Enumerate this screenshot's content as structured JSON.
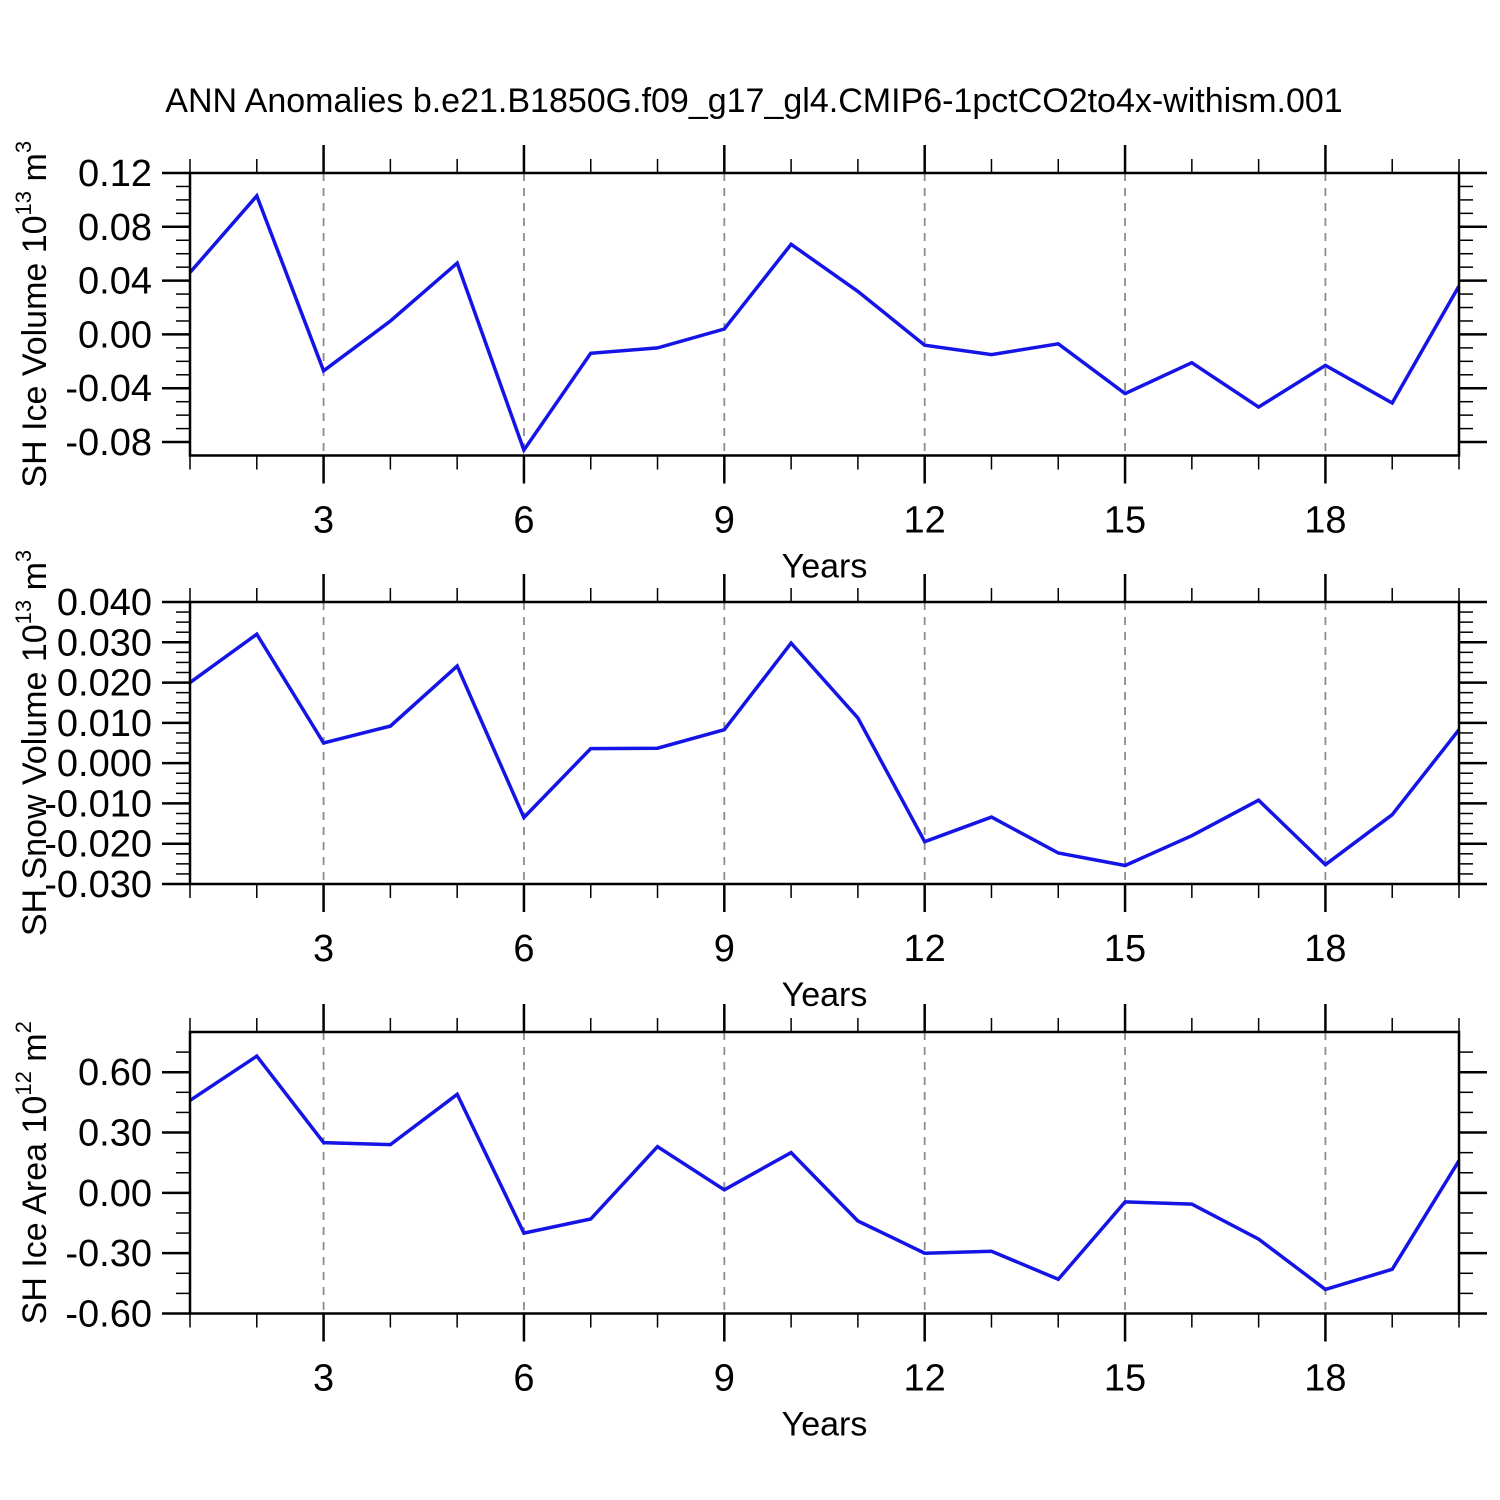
{
  "title": "ANN Anomalies b.e21.B1850G.f09_g17_gl4.CMIP6-1pctCO2to4x-withism.001",
  "colors": {
    "line": "#1414e6",
    "grid": "#8c8c8c",
    "axis": "#000000",
    "background": "#ffffff",
    "text": "#000000"
  },
  "x_axis": {
    "label": "Years",
    "range": [
      1,
      20
    ],
    "major_ticks": [
      3,
      6,
      9,
      12,
      15,
      18
    ],
    "major_tick_labels": [
      "3",
      "6",
      "9",
      "12",
      "15",
      "18"
    ],
    "minor_step": 1
  },
  "chart_data": [
    {
      "type": "line",
      "name": "sh-ice-volume",
      "ylabel": "SH Ice Volume 10^13 m^3",
      "ylabel_parts": [
        {
          "text": "SH Ice Volume 10"
        },
        {
          "sup": "13"
        },
        {
          "text": " m"
        },
        {
          "sup": "3"
        }
      ],
      "xlabel": "Years",
      "x": [
        1,
        2,
        3,
        4,
        5,
        6,
        7,
        8,
        9,
        10,
        11,
        12,
        13,
        14,
        15,
        16,
        17,
        18,
        19,
        20
      ],
      "values": [
        0.046,
        0.103,
        -0.027,
        0.01,
        0.053,
        -0.086,
        -0.014,
        -0.01,
        0.004,
        0.067,
        0.032,
        -0.008,
        -0.015,
        -0.007,
        -0.044,
        -0.021,
        -0.054,
        -0.023,
        -0.051,
        0.036
      ],
      "ylim": [
        -0.09,
        0.12
      ],
      "y_major_ticks": [
        {
          "value": 0.12,
          "label": "0.12"
        },
        {
          "value": 0.08,
          "label": "0.08"
        },
        {
          "value": 0.04,
          "label": "0.04"
        },
        {
          "value": 0.0,
          "label": "0.00"
        },
        {
          "value": -0.04,
          "label": "-0.04"
        },
        {
          "value": -0.08,
          "label": "-0.08"
        }
      ],
      "y_minor_step": 0.01
    },
    {
      "type": "line",
      "name": "sh-snow-volume",
      "ylabel": "SH Snow Volume 10^13 m^3",
      "ylabel_parts": [
        {
          "text": "SH Snow Volume 10"
        },
        {
          "sup": "13"
        },
        {
          "text": " m"
        },
        {
          "sup": "3"
        }
      ],
      "xlabel": "Years",
      "x": [
        1,
        2,
        3,
        4,
        5,
        6,
        7,
        8,
        9,
        10,
        11,
        12,
        13,
        14,
        15,
        16,
        17,
        18,
        19,
        20
      ],
      "values": [
        0.02,
        0.032,
        0.005,
        0.0092,
        0.0241,
        -0.0135,
        0.0036,
        0.0037,
        0.0083,
        0.0298,
        0.0112,
        -0.0195,
        -0.0134,
        -0.0223,
        -0.0254,
        -0.018,
        -0.0092,
        -0.0252,
        -0.0128,
        0.0083
      ],
      "ylim": [
        -0.03,
        0.04
      ],
      "y_major_ticks": [
        {
          "value": 0.04,
          "label": "0.040"
        },
        {
          "value": 0.03,
          "label": "0.030"
        },
        {
          "value": 0.02,
          "label": "0.020"
        },
        {
          "value": 0.01,
          "label": "0.010"
        },
        {
          "value": 0.0,
          "label": "0.000"
        },
        {
          "value": -0.01,
          "label": "-0.010"
        },
        {
          "value": -0.02,
          "label": "-0.020"
        },
        {
          "value": -0.03,
          "label": "-0.030"
        }
      ],
      "y_minor_step": 0.0025
    },
    {
      "type": "line",
      "name": "sh-ice-area",
      "ylabel": "SH Ice Area 10^12 m^2",
      "ylabel_parts": [
        {
          "text": "SH Ice Area 10"
        },
        {
          "sup": "12"
        },
        {
          "text": " m"
        },
        {
          "sup": "2"
        }
      ],
      "xlabel": "Years",
      "x": [
        1,
        2,
        3,
        4,
        5,
        6,
        7,
        8,
        9,
        10,
        11,
        12,
        13,
        14,
        15,
        16,
        17,
        18,
        19,
        20
      ],
      "values": [
        0.46,
        0.68,
        0.25,
        0.24,
        0.49,
        -0.2,
        -0.13,
        0.23,
        0.015,
        0.2,
        -0.14,
        -0.3,
        -0.29,
        -0.43,
        -0.045,
        -0.056,
        -0.23,
        -0.48,
        -0.38,
        0.16
      ],
      "ylim": [
        -0.6,
        0.8
      ],
      "y_major_ticks": [
        {
          "value": 0.6,
          "label": "0.60"
        },
        {
          "value": 0.3,
          "label": "0.30"
        },
        {
          "value": 0.0,
          "label": "0.00"
        },
        {
          "value": -0.3,
          "label": "-0.30"
        },
        {
          "value": -0.6,
          "label": "-0.60"
        }
      ],
      "y_minor_step": 0.1
    }
  ]
}
